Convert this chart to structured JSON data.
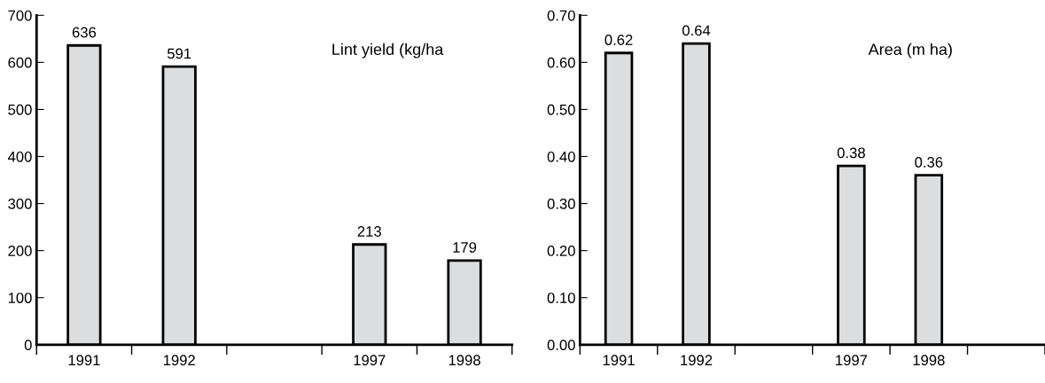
{
  "chart_data": [
    {
      "type": "bar",
      "title": "Lint yield (kg/ha",
      "categories": [
        "1991",
        "1992",
        null,
        "1997",
        "1998"
      ],
      "values": [
        636,
        591,
        null,
        213,
        179
      ],
      "color": "#dcdddf",
      "data_labels": true,
      "ylim": [
        0,
        700
      ],
      "yticks": [
        0,
        100,
        200,
        300,
        400,
        500,
        600,
        700
      ],
      "grid": false,
      "legend": false
    },
    {
      "type": "bar",
      "title": "Area (m ha)",
      "categories": [
        "1991",
        "1992",
        null,
        "1997",
        "1998",
        null
      ],
      "values": [
        0.62,
        0.64,
        null,
        0.38,
        0.36,
        null
      ],
      "value_labels": [
        "0.62",
        "0.64",
        null,
        "0.38",
        "0.36",
        null
      ],
      "color": "#dcdddf",
      "ylim": [
        0,
        0.7
      ],
      "yticks": [
        {
          "value": 0,
          "label": "0.00"
        },
        {
          "value": 0.1,
          "label": "0.10"
        },
        {
          "value": 0.2,
          "label": "0.20"
        },
        {
          "value": 0.3,
          "label": "0.30"
        },
        {
          "value": 0.4,
          "label": "0.40"
        },
        {
          "value": 0.5,
          "label": "0.50"
        },
        {
          "value": 0.6,
          "label": "0.60"
        },
        {
          "value": 0.7,
          "label": "0.70"
        }
      ],
      "grid": false,
      "legend": false
    }
  ]
}
